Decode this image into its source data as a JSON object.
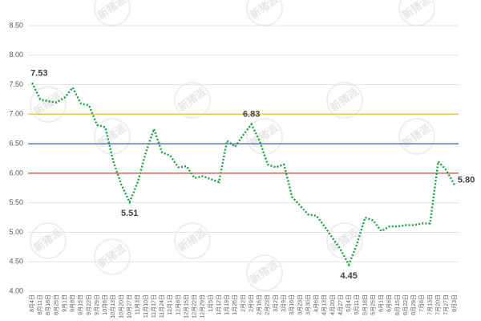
{
  "chart_data": {
    "type": "line",
    "watermark": "新猪派",
    "categories": [
      "8月4日",
      "8月11日",
      "8月18日",
      "8月25日",
      "9月1日",
      "9月8日",
      "9月15日",
      "9月22日",
      "9月29日",
      "10月6日",
      "10月13日",
      "10月20日",
      "10月27日",
      "11月3日",
      "11月10日",
      "11月17日",
      "11月24日",
      "12月1日",
      "12月8日",
      "12月15日",
      "12月22日",
      "12月29日",
      "1月5日",
      "1月12日",
      "1月19日",
      "1月26日",
      "2月2日",
      "2月9日",
      "2月16日",
      "2月23日",
      "3月2日",
      "3月9日",
      "3月16日",
      "3月23日",
      "3月30日",
      "4月6日",
      "4月13日",
      "4月20日",
      "4月27日",
      "5月4日",
      "5月11日",
      "5月18日",
      "5月25日",
      "6月1日",
      "6月8日",
      "6月15日",
      "6月22日",
      "6月29日",
      "7月6日",
      "7月13日",
      "7月20日",
      "7月27日",
      "8月3日"
    ],
    "values": [
      7.53,
      7.25,
      7.22,
      7.2,
      7.28,
      7.45,
      7.18,
      7.15,
      6.82,
      6.78,
      6.2,
      5.8,
      5.51,
      5.85,
      6.35,
      6.75,
      6.35,
      6.3,
      6.1,
      6.12,
      5.92,
      5.95,
      5.9,
      5.85,
      6.55,
      6.45,
      6.65,
      6.83,
      6.55,
      6.15,
      6.1,
      6.15,
      5.6,
      5.45,
      5.3,
      5.28,
      5.1,
      4.9,
      4.7,
      4.45,
      4.8,
      5.25,
      5.2,
      5.02,
      5.1,
      5.1,
      5.12,
      5.12,
      5.15,
      5.15,
      6.2,
      6.05,
      5.8
    ],
    "value_labels": [
      "7.53",
      null,
      null,
      null,
      null,
      null,
      null,
      null,
      null,
      null,
      null,
      null,
      "5.51",
      null,
      null,
      null,
      null,
      null,
      null,
      null,
      null,
      null,
      null,
      null,
      null,
      null,
      null,
      "6.83",
      null,
      null,
      null,
      null,
      null,
      null,
      null,
      null,
      null,
      null,
      null,
      "4.45",
      null,
      null,
      null,
      null,
      null,
      null,
      null,
      null,
      null,
      null,
      null,
      null,
      "5.80"
    ],
    "color": "#1e9e40",
    "reference_lines": [
      {
        "value": 7,
        "color": "#f2c14e"
      },
      {
        "value": 6.5,
        "color": "#3f5fc0"
      },
      {
        "value": 6,
        "color": "#d9413e"
      }
    ],
    "ylim": [
      4,
      8.5
    ],
    "yticks": [
      {
        "value": 4,
        "label": "4.00"
      },
      {
        "value": 4.5,
        "label": "4.50"
      },
      {
        "value": 5,
        "label": "5.00"
      },
      {
        "value": 5.5,
        "label": "5.50"
      },
      {
        "value": 6,
        "label": "6.00"
      },
      {
        "value": 6.5,
        "label": "6.50"
      },
      {
        "value": 7,
        "label": "7.00"
      },
      {
        "value": 7.5,
        "label": "7.50"
      },
      {
        "value": 8,
        "label": "8.00"
      },
      {
        "value": 8.5,
        "label": "8.50"
      }
    ],
    "grid": true
  }
}
